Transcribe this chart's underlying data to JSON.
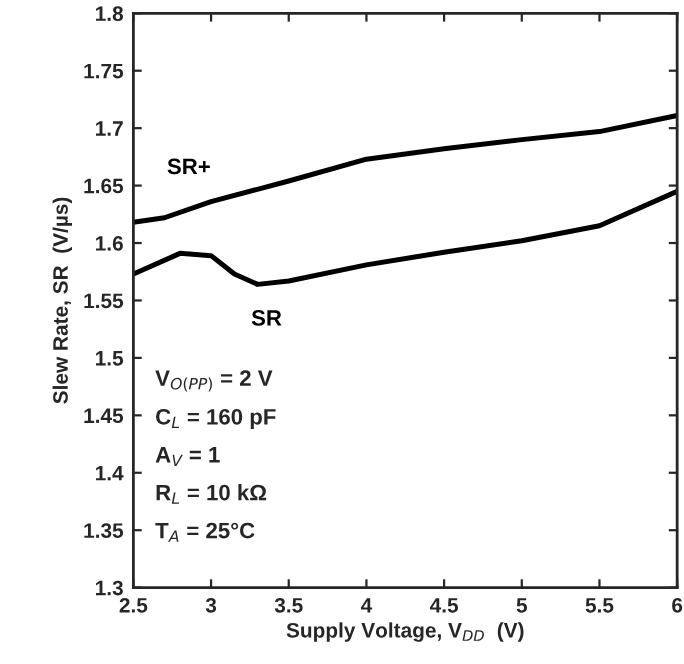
{
  "chart_data": {
    "type": "line",
    "xlabel": "Supply Voltage, V$_{DD}$  (V)",
    "ylabel": "Slew Rate, SR  (V/µs)",
    "series": [
      {
        "name": "SR+",
        "color": "#000000",
        "x": [
          2.5,
          2.7,
          3.0,
          3.5,
          4.0,
          4.5,
          5.0,
          5.5,
          6.0
        ],
        "values": [
          1.618,
          1.622,
          1.636,
          1.654,
          1.673,
          1.682,
          1.69,
          1.697,
          1.711
        ]
      },
      {
        "name": "SR",
        "color": "#000000",
        "x": [
          2.5,
          2.8,
          3.0,
          3.15,
          3.3,
          3.5,
          4.0,
          4.5,
          5.0,
          5.5,
          6.0
        ],
        "values": [
          1.573,
          1.591,
          1.589,
          1.573,
          1.564,
          1.567,
          1.581,
          1.592,
          1.602,
          1.615,
          1.645
        ]
      }
    ],
    "annotations": [
      "V$_{O(PP)}$ = 2 V",
      "C$_{L}$ = 160 pF",
      "A$_{V}$ = 1",
      "R$_{L}$ = 10 kΩ",
      "T$_{A}$ = 25°C"
    ],
    "xlim": [
      2.5,
      6
    ],
    "xticks": [
      2.5,
      3,
      3.5,
      4,
      4.5,
      5,
      5.5,
      6
    ],
    "ylim": [
      1.3,
      1.8
    ],
    "yticks": [
      1.3,
      1.35,
      1.4,
      1.45,
      1.5,
      1.55,
      1.6,
      1.65,
      1.7,
      1.75,
      1.8
    ],
    "grid": false,
    "legend": false,
    "marker": "none",
    "line_style": "solid"
  }
}
